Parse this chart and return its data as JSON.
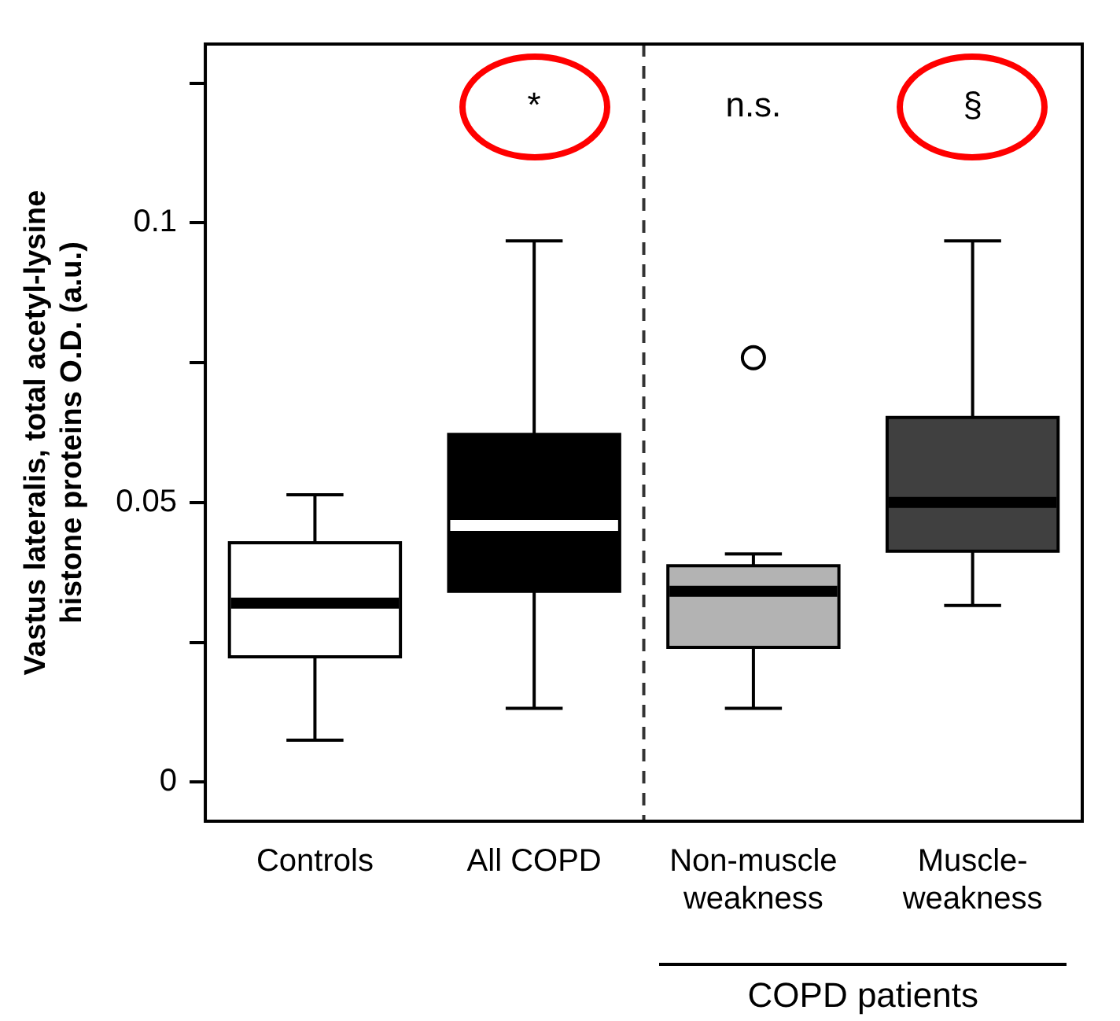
{
  "chart_data": {
    "type": "box",
    "ylabel": "Vastus lateralis, total acetyl-lysine\nhistone proteins O.D. (a.u.)",
    "categories": [
      "Controls",
      "All COPD",
      "Non-muscle\nweakness",
      "Muscle-\nweakness"
    ],
    "colors": [
      "#ffffff",
      "#000000",
      "#b3b3b3",
      "#404040"
    ],
    "boxes": [
      {
        "low": 0.0075,
        "q1": 0.0224,
        "median": 0.032,
        "q3": 0.0428,
        "high": 0.0514
      },
      {
        "low": 0.0132,
        "q1": 0.0341,
        "median": 0.0459,
        "q3": 0.0622,
        "high": 0.0968
      },
      {
        "low": 0.0132,
        "q1": 0.0241,
        "median": 0.0341,
        "q3": 0.0387,
        "high": 0.0408,
        "outliers": [
          0.0759
        ]
      },
      {
        "low": 0.0316,
        "q1": 0.0413,
        "median": 0.05,
        "q3": 0.0652,
        "high": 0.0968
      }
    ],
    "ylim": [
      -0.007,
      0.132
    ],
    "yticks": [
      0,
      {
        "value": 0.025,
        "label": null
      },
      0.05,
      {
        "value": 0.075,
        "label": null
      },
      0.1,
      {
        "value": 0.125,
        "label": null
      }
    ],
    "annotations": [
      "*",
      "n.s.",
      "§",
      "COPD patients"
    ],
    "grid": false
  }
}
